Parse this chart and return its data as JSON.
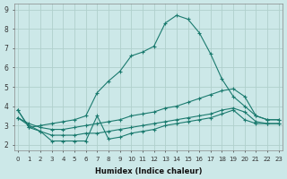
{
  "xlabel": "Humidex (Indice chaleur)",
  "background_color": "#cce8e8",
  "grid_color": "#b0d0cc",
  "line_color": "#1a7a6e",
  "x_ticks": [
    0,
    1,
    2,
    3,
    4,
    5,
    6,
    7,
    8,
    9,
    10,
    11,
    12,
    13,
    14,
    15,
    16,
    17,
    18,
    19,
    20,
    21,
    22,
    23
  ],
  "y_ticks": [
    2,
    3,
    4,
    5,
    6,
    7,
    8,
    9
  ],
  "ylim": [
    1.7,
    9.3
  ],
  "xlim": [
    -0.3,
    23.3
  ],
  "lines": [
    {
      "x": [
        0,
        1,
        2,
        3,
        4,
        5,
        6,
        7,
        8,
        9,
        10,
        11,
        12,
        13,
        14,
        15,
        16,
        17,
        18,
        19,
        20,
        21,
        22,
        23
      ],
      "y": [
        3.8,
        2.9,
        3.0,
        3.1,
        3.2,
        3.3,
        3.5,
        4.7,
        5.3,
        5.8,
        6.6,
        6.8,
        7.1,
        8.3,
        8.7,
        8.5,
        7.8,
        6.7,
        5.4,
        4.5,
        4.0,
        3.5,
        3.3,
        3.3
      ]
    },
    {
      "x": [
        0,
        1,
        2,
        3,
        4,
        5,
        6,
        7,
        8,
        9,
        10,
        11,
        12,
        13,
        14,
        15,
        16,
        17,
        18,
        19,
        20,
        21,
        22,
        23
      ],
      "y": [
        3.8,
        2.9,
        2.7,
        2.2,
        2.2,
        2.2,
        2.2,
        3.5,
        2.3,
        2.4,
        2.6,
        2.7,
        2.8,
        3.0,
        3.1,
        3.2,
        3.3,
        3.4,
        3.6,
        3.8,
        3.3,
        3.1,
        3.1,
        3.1
      ]
    },
    {
      "x": [
        0,
        1,
        2,
        3,
        4,
        5,
        6,
        7,
        8,
        9,
        10,
        11,
        12,
        13,
        14,
        15,
        16,
        17,
        18,
        19,
        20,
        21,
        22,
        23
      ],
      "y": [
        3.4,
        3.1,
        2.9,
        2.8,
        2.8,
        2.9,
        3.0,
        3.1,
        3.2,
        3.3,
        3.5,
        3.6,
        3.7,
        3.9,
        4.0,
        4.2,
        4.4,
        4.6,
        4.8,
        4.9,
        4.5,
        3.5,
        3.3,
        3.3
      ]
    },
    {
      "x": [
        0,
        1,
        2,
        3,
        4,
        5,
        6,
        7,
        8,
        9,
        10,
        11,
        12,
        13,
        14,
        15,
        16,
        17,
        18,
        19,
        20,
        21,
        22,
        23
      ],
      "y": [
        3.4,
        3.0,
        2.7,
        2.5,
        2.5,
        2.5,
        2.6,
        2.6,
        2.7,
        2.8,
        2.9,
        3.0,
        3.1,
        3.2,
        3.3,
        3.4,
        3.5,
        3.6,
        3.8,
        3.9,
        3.7,
        3.2,
        3.1,
        3.1
      ]
    }
  ]
}
